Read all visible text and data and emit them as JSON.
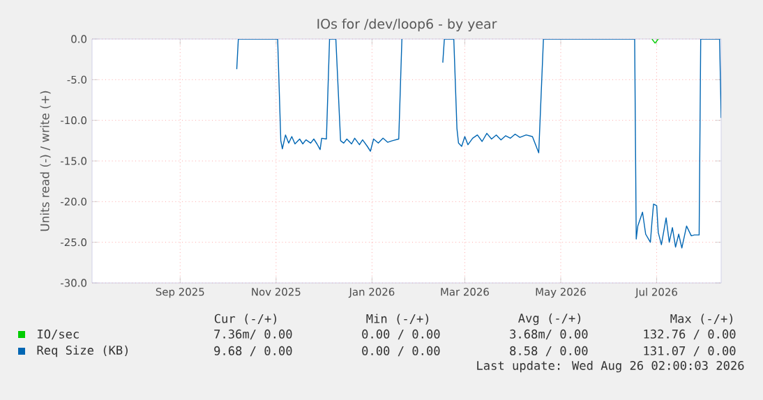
{
  "chart_data": {
    "type": "line",
    "title": "IOs for /dev/loop6 - by year",
    "ylabel": "Units read (-) / write (+)",
    "xlim": [
      "2025-07-22",
      "2026-08-26"
    ],
    "ylim": [
      -30,
      0
    ],
    "xticks": [
      {
        "value": "2025-09-16",
        "label": "Sep 2025"
      },
      {
        "value": "2025-11-16",
        "label": "Nov 2025"
      },
      {
        "value": "2026-01-16",
        "label": "Jan 2026"
      },
      {
        "value": "2026-03-16",
        "label": "Mar 2026"
      },
      {
        "value": "2026-05-16",
        "label": "May 2026"
      },
      {
        "value": "2026-07-16",
        "label": "Jul 2026"
      }
    ],
    "yticks": [
      {
        "value": -30,
        "label": "-30.0"
      },
      {
        "value": -25,
        "label": "-25.0"
      },
      {
        "value": -20,
        "label": "-20.0"
      },
      {
        "value": -15,
        "label": "-15.0"
      },
      {
        "value": -10,
        "label": "-10.0"
      },
      {
        "value": -5,
        "label": "-5.0"
      },
      {
        "value": 0,
        "label": "0.0"
      }
    ],
    "grid": true,
    "legend": "bottom",
    "marker": "none",
    "line_style": "solid",
    "series": [
      {
        "name": "IO/sec",
        "color": "#00cc00",
        "x": [
          "2026-07-13",
          "2026-07-15",
          "2026-07-17"
        ],
        "values": [
          0,
          -0.5,
          0
        ]
      },
      {
        "name": "Req Size (KB)",
        "color": "#0066b3",
        "x": [
          "2025-10-22",
          "2025-10-23",
          "2025-11-17",
          "2025-11-19",
          "2025-11-20",
          "2025-11-22",
          "2025-11-24",
          "2025-11-26",
          "2025-11-28",
          "2025-12-01",
          "2025-12-03",
          "2025-12-05",
          "2025-12-08",
          "2025-12-10",
          "2025-12-12",
          "2025-12-14",
          "2025-12-15",
          "2025-12-18",
          "2025-12-20",
          "2025-12-24",
          "2025-12-27",
          "2025-12-29",
          "2025-12-31",
          "2026-01-03",
          "2026-01-05",
          "2026-01-08",
          "2026-01-10",
          "2026-01-13",
          "2026-01-15",
          "2026-01-17",
          "2026-01-20",
          "2026-01-23",
          "2026-01-26",
          "2026-01-29",
          "2026-02-02",
          "2026-02-04",
          "2026-03-01",
          "2026-03-02",
          "2026-03-03",
          "2026-03-09",
          "2026-03-11",
          "2026-03-12",
          "2026-03-14",
          "2026-03-16",
          "2026-03-18",
          "2026-03-21",
          "2026-03-24",
          "2026-03-27",
          "2026-03-30",
          "2026-04-02",
          "2026-04-05",
          "2026-04-08",
          "2026-04-11",
          "2026-04-14",
          "2026-04-17",
          "2026-04-20",
          "2026-04-24",
          "2026-04-28",
          "2026-05-02",
          "2026-05-05",
          "2026-07-02",
          "2026-07-03",
          "2026-07-04",
          "2026-07-07",
          "2026-07-09",
          "2026-07-12",
          "2026-07-13",
          "2026-07-14",
          "2026-07-16",
          "2026-07-17",
          "2026-07-19",
          "2026-07-22",
          "2026-07-24",
          "2026-07-26",
          "2026-07-28",
          "2026-07-30",
          "2026-08-01",
          "2026-08-04",
          "2026-08-07",
          "2026-08-09",
          "2026-08-12",
          "2026-08-13",
          "2026-08-25",
          "2026-08-26"
        ],
        "values": [
          -3.7,
          0,
          0,
          -12.5,
          -13.5,
          -11.8,
          -12.8,
          -12.0,
          -12.9,
          -12.3,
          -12.9,
          -12.4,
          -12.8,
          -12.3,
          -12.9,
          -13.6,
          -12.2,
          -12.3,
          0,
          0,
          -12.5,
          -12.8,
          -12.3,
          -12.9,
          -12.2,
          -13.0,
          -12.4,
          -13.2,
          -13.8,
          -12.3,
          -12.8,
          -12.2,
          -12.7,
          -12.5,
          -12.3,
          0,
          null,
          -2.9,
          0,
          0,
          -11.0,
          -12.8,
          -13.2,
          -12.0,
          -13.0,
          -12.2,
          -11.8,
          -12.6,
          -11.6,
          -12.3,
          -11.8,
          -12.4,
          -11.9,
          -12.2,
          -11.7,
          -12.1,
          -11.8,
          -12.0,
          -14.0,
          0,
          0,
          -24.6,
          -23.0,
          -21.3,
          -24.0,
          -25.0,
          -22.5,
          -20.3,
          -20.5,
          -23.8,
          -25.3,
          -22.0,
          -25.0,
          -23.2,
          -25.6,
          -24.0,
          -25.7,
          -23.0,
          -24.2,
          -24.1,
          -24.1,
          0,
          0,
          -9.7
        ]
      }
    ],
    "annotations": [
      "Cur (-/+)",
      "Min (-/+)",
      "Avg (-/+)",
      "Max (-/+)",
      "7.36m/  0.00",
      "0.00 /  0.00",
      "3.68m/  0.00",
      "132.76 /  0.00",
      "9.68 /  0.00",
      "0.00 /  0.00",
      "8.58 /  0.00",
      "131.07 /  0.00",
      "Last update: Wed Aug 26 02:00:03 2026"
    ]
  }
}
